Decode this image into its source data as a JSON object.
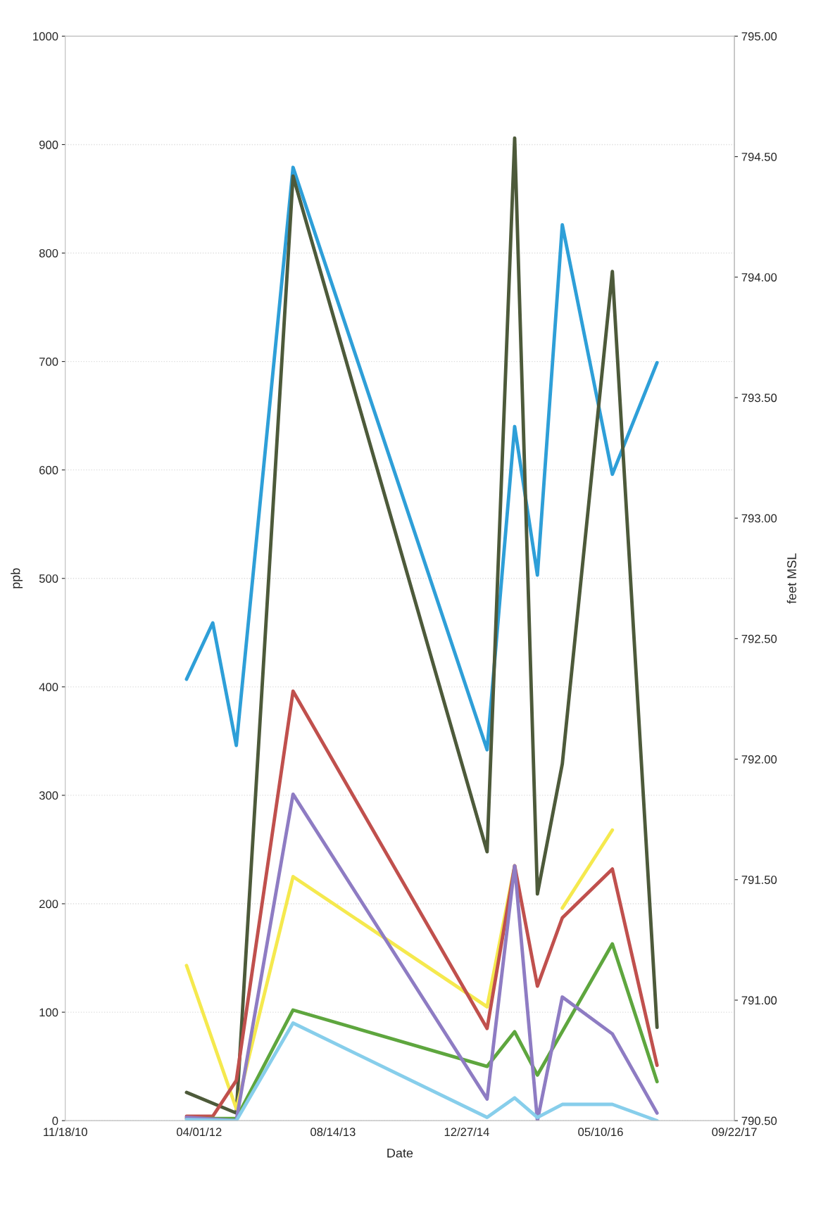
{
  "chart_data": {
    "type": "line",
    "xlabel": "Date",
    "ylabel": "ppb",
    "y2label": "feet MSL",
    "xlim": [
      "2010-11-18",
      "2017-09-22"
    ],
    "xticks": [
      {
        "value": "2010-11-18",
        "label": "11/18/10"
      },
      {
        "value": "2012-04-01",
        "label": "04/01/12"
      },
      {
        "value": "2013-08-14",
        "label": "08/14/13"
      },
      {
        "value": "2014-12-27",
        "label": "12/27/14"
      },
      {
        "value": "2016-05-10",
        "label": "05/10/16"
      },
      {
        "value": "2017-09-22",
        "label": "09/22/17"
      }
    ],
    "ylim": [
      0,
      1000
    ],
    "yticks": [
      0,
      100,
      200,
      300,
      400,
      500,
      600,
      700,
      800,
      900,
      1000
    ],
    "y2lim": [
      790.5,
      795
    ],
    "y2ticks": [
      {
        "value": 790.5,
        "label": "790.50"
      },
      {
        "value": 791,
        "label": "791.00"
      },
      {
        "value": 791.5,
        "label": "791.50"
      },
      {
        "value": 792,
        "label": "792.00"
      },
      {
        "value": 792.5,
        "label": "792.50"
      },
      {
        "value": 793,
        "label": "793.00"
      },
      {
        "value": 793.5,
        "label": "793.50"
      },
      {
        "value": 794,
        "label": "794.00"
      },
      {
        "value": 794.5,
        "label": "794.50"
      },
      {
        "value": 795,
        "label": "795.00"
      }
    ],
    "grid": "y",
    "legend": false,
    "marker": "none",
    "line_style": "solid",
    "series": [
      {
        "color": "#2e9fd8",
        "x": [
          "2012-02-14",
          "2012-05-22",
          "2012-08-18",
          "2013-03-18",
          "2015-03-13",
          "2015-06-24",
          "2015-09-17",
          "2015-12-19",
          "2016-06-23",
          "2016-12-07"
        ],
        "values": [
          407,
          459,
          346,
          879,
          342,
          640,
          503,
          826,
          596,
          699
        ]
      },
      {
        "color": "#4d5a3a",
        "x": [
          "2012-02-14",
          "2012-08-18",
          "2013-03-18",
          "2015-03-13",
          "2015-06-24",
          "2015-09-17",
          "2015-12-19",
          "2016-06-23",
          "2016-12-07"
        ],
        "values": [
          26,
          7,
          871,
          248,
          906,
          209,
          329,
          783,
          86
        ]
      },
      {
        "color": "#f5e94e",
        "x": [
          "2012-02-14",
          "2012-08-18",
          "2013-03-18",
          "2015-03-13",
          "2015-06-24",
          "2015-09-17",
          "2015-12-19",
          "2016-06-23"
        ],
        "values": [
          143,
          11,
          225,
          105,
          235,
          null,
          196,
          268
        ]
      },
      {
        "color": "#c0504d",
        "x": [
          "2012-02-14",
          "2012-05-22",
          "2012-08-18",
          "2013-03-18",
          "2015-03-13",
          "2015-06-24",
          "2015-09-17",
          "2015-12-19",
          "2016-06-23",
          "2016-12-07"
        ],
        "values": [
          4,
          4,
          37,
          396,
          85,
          235,
          124,
          187,
          232,
          51
        ]
      },
      {
        "color": "#5ea63e",
        "x": [
          "2012-02-14",
          "2012-08-18",
          "2013-03-18",
          "2015-03-13",
          "2015-06-24",
          "2015-09-17",
          "2016-06-23",
          "2016-12-07"
        ],
        "values": [
          2,
          2,
          102,
          50,
          82,
          42,
          163,
          36
        ]
      },
      {
        "color": "#8e7cc3",
        "x": [
          "2012-02-14",
          "2012-08-18",
          "2013-03-18",
          "2015-03-13",
          "2015-06-24",
          "2015-09-17",
          "2015-12-19",
          "2016-06-23",
          "2016-12-07"
        ],
        "values": [
          3,
          0,
          301,
          20,
          235,
          0,
          114,
          80,
          7
        ]
      },
      {
        "color": "#87ceeb",
        "x": [
          "2012-02-14",
          "2012-08-18",
          "2013-03-18",
          "2015-03-13",
          "2015-06-24",
          "2015-09-17",
          "2015-12-19",
          "2016-06-23",
          "2016-12-07"
        ],
        "values": [
          1,
          0,
          90,
          3,
          21,
          3,
          15,
          15,
          0
        ]
      }
    ]
  }
}
